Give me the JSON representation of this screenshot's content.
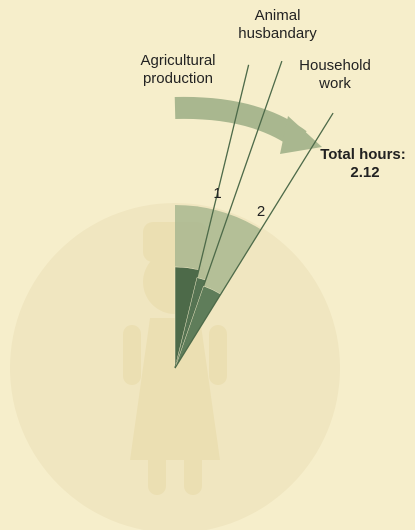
{
  "chart_data": {
    "type": "radial-bar",
    "annotation": "Total hours:",
    "total": 2.12,
    "categories": [
      "Agricultural production",
      "Animal husbandary",
      "Household work"
    ],
    "values": [
      0.91,
      0.37,
      0.84
    ],
    "colors": [
      "#4d6a49",
      "#557352",
      "#5f7d5a"
    ],
    "total_color": "#a9b78f",
    "thetalim": [
      0,
      24
    ],
    "ticks": [
      1,
      2
    ]
  }
}
